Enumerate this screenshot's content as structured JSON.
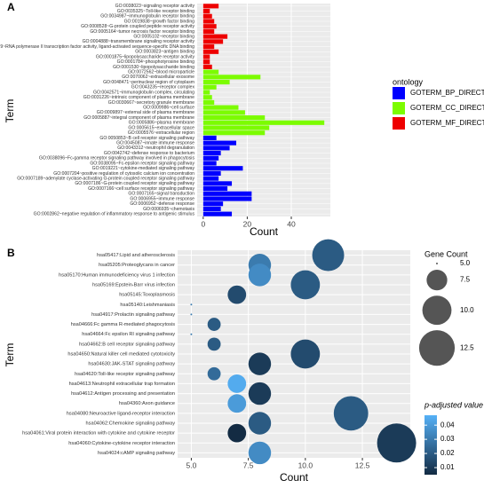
{
  "chart_data": [
    {
      "type": "bar",
      "label": "A",
      "xlabel": "Count",
      "ylabel": "Term",
      "legend_title": "ontology",
      "categories": [
        "GO:0038023~signaling receptor activity",
        "GO:0035325~Toll-like receptor binding",
        "GO:0034987~immunoglobulin receptor binding",
        "GO:0019838~growth factor binding",
        "GO:0008528~G-protein coupled peptide receptor activity",
        "GO:0005164~tumor necrosis factor receptor binding",
        "GO:0005102~receptor binding",
        "GO:0004888~transmembrane signaling receptor activity",
        "GO:0004879~RNA polymerase II transcription factor activity, ligand-activated sequence-specific DNA binding",
        "GO:0003823~antigen binding",
        "GO:0001875~lipopolysaccharide receptor activity",
        "GO:0001784~phosphotyrosine binding",
        "GO:0001530~lipopolysaccharide binding",
        "GO:0072562~blood microparticle",
        "GO:0070062~extracellular exosome",
        "GO:0048471~perinuclear region of cytoplasm",
        "GO:0043235~receptor complex",
        "GO:0042571~immunoglobulin complex, circulating",
        "GO:0031226~intrinsic component of plasma membrane",
        "GO:0030667~secretory granule membrane",
        "GO:0009986~cell surface",
        "GO:0009897~external side of plasma membrane",
        "GO:0005887~integral component of plasma membrane",
        "GO:0005886~plasma membrane",
        "GO:0005615~extracellular space",
        "GO:0005576~extracellular region",
        "GO:0050853~B cell receptor signaling pathway",
        "GO:0045087~innate immune response",
        "GO:0043312~neutrophil degranulation",
        "GO:0042742~defense response to bacterium",
        "GO:0038096~Fc-gamma receptor signaling pathway involved in phagocytosis",
        "GO:0038095~Fc-epsilon receptor signaling pathway",
        "GO:0019221~cytokine-mediated signaling pathway",
        "GO:0007204~positive regulation of cytosolic calcium ion concentration",
        "GO:0007189~adenylate cyclase-activating G-protein coupled receptor signaling pathway",
        "GO:0007186~G-protein coupled receptor signaling pathway",
        "GO:0007166~cell surface receptor signaling pathway",
        "GO:0007165~signal transduction",
        "GO:0006955~immune response",
        "GO:0006952~defense response",
        "GO:0006935~chemotaxis",
        "GO:0002862~negative regulation of inflammatory response to antigenic stimulus"
      ],
      "series": [
        {
          "name": "GOTERM_BP_DIRECT",
          "color": "#0000ff",
          "values": [
            null,
            null,
            null,
            null,
            null,
            null,
            null,
            null,
            null,
            null,
            null,
            null,
            null,
            null,
            null,
            null,
            null,
            null,
            null,
            null,
            null,
            null,
            null,
            null,
            null,
            null,
            6,
            15,
            12,
            8,
            7,
            6,
            18,
            8,
            7,
            13,
            11,
            22,
            22,
            9,
            8,
            13
          ]
        },
        {
          "name": "GOTERM_CC_DIRECT",
          "color": "#7cfc00",
          "values": [
            null,
            null,
            null,
            null,
            null,
            null,
            null,
            null,
            null,
            null,
            null,
            null,
            null,
            7,
            26,
            12,
            6,
            3,
            4,
            5,
            16,
            19,
            28,
            55,
            30,
            28,
            null,
            null,
            null,
            null,
            null,
            null,
            null,
            null,
            null,
            null,
            null,
            null,
            null,
            null,
            null,
            null
          ]
        },
        {
          "name": "GOTERM_MF_DIRECT",
          "color": "#ee0000",
          "values": [
            7,
            3,
            4,
            5,
            6,
            5,
            11,
            9,
            5,
            7,
            3,
            3,
            4,
            null,
            null,
            null,
            null,
            null,
            null,
            null,
            null,
            null,
            null,
            null,
            null,
            null,
            null,
            null,
            null,
            null,
            null,
            null,
            null,
            null,
            null,
            null,
            null,
            null,
            null,
            null,
            null,
            null
          ]
        }
      ],
      "xlim": [
        -2.75,
        57.75
      ],
      "xticks": [
        0,
        20,
        40
      ],
      "grid": true
    },
    {
      "type": "dot",
      "label": "B",
      "xlabel": "Count",
      "ylabel": "Term",
      "size_title": "Gene Count",
      "color_title": "p-adjusted value",
      "categories": [
        "hsa05417:Lipid and atherosclerosis",
        "hsa05205:Proteoglycans in cancer",
        "hsa05170:Human immunodeficiency virus 1 infection",
        "hsa05169:Epstein-Barr virus infection",
        "hsa05145:Toxoplasmosis",
        "hsa05140:Leishmaniasis",
        "hsa04917:Prolactin signaling pathway",
        "hsa04666:Fc gamma R-mediated phagocytosis",
        "hsa04664:Fc epsilon RI signaling pathway",
        "hsa04662:B cell receptor signaling pathway",
        "hsa04650:Natural killer cell mediated cytotoxicity",
        "hsa04630:JAK-STAT signaling pathway",
        "hsa04620:Toll-like receptor signaling pathway",
        "hsa04613:Neutrophil extracellular trap formation",
        "hsa04612:Antigen processing and presentation",
        "hsa04360:Axon guidance",
        "hsa04080:Neuroactive ligand-receptor interaction",
        "hsa04062:Chemokine signaling pathway",
        "hsa04061:Viral protein interaction with cytokine and cytokine receptor",
        "hsa04060:Cytokine-cytokine receptor interaction",
        "hsa04024:cAMP signaling pathway"
      ],
      "values": [
        11,
        8,
        8,
        10,
        7,
        5,
        5,
        6,
        5,
        6,
        10,
        8,
        6,
        7,
        8,
        7,
        12,
        8,
        7,
        14,
        8
      ],
      "sizes": [
        11,
        8,
        8,
        10,
        7,
        5,
        5,
        6,
        5,
        6,
        10,
        8,
        6,
        7,
        8,
        7,
        12,
        8,
        7,
        14,
        8
      ],
      "p_values": [
        0.02,
        0.03,
        0.035,
        0.02,
        0.015,
        0.03,
        0.03,
        0.02,
        0.03,
        0.02,
        0.015,
        0.01,
        0.025,
        0.045,
        0.01,
        0.04,
        0.02,
        0.02,
        0.005,
        0.01,
        0.035
      ],
      "xlim": [
        4.4,
        14.6
      ],
      "xticks": [
        {
          "value": 5,
          "label": "5.0"
        },
        {
          "value": 7.5,
          "label": "7.5"
        },
        {
          "value": 10,
          "label": "10.0"
        },
        {
          "value": 12.5,
          "label": "12.5"
        }
      ],
      "size_ticks": [
        {
          "value": 5,
          "label": "5.0"
        },
        {
          "value": 7.5,
          "label": "7.5"
        },
        {
          "value": 10,
          "label": "10.0"
        },
        {
          "value": 12.5,
          "label": "12.5"
        }
      ],
      "colorlim": [
        0.005,
        0.047
      ],
      "color_ticks": [
        0.01,
        0.02,
        0.03,
        0.04
      ],
      "colors": [
        "#132B43",
        "#56B1F7"
      ],
      "grid": true
    }
  ]
}
